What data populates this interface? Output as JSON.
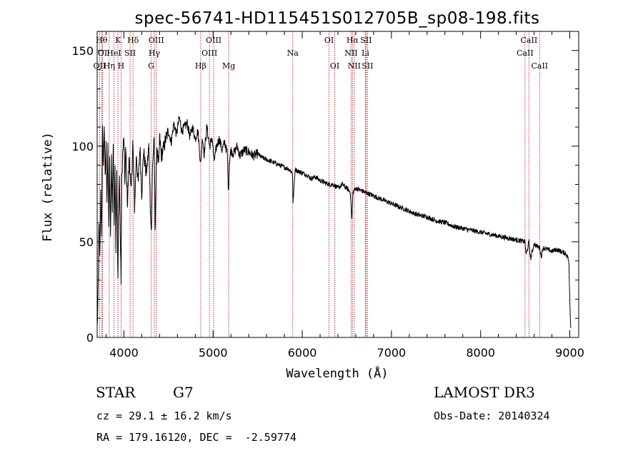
{
  "chart_data": {
    "type": "line",
    "title": "spec-56741-HD115451S012705B_sp08-198.fits",
    "xlabel": "Wavelength (Å)",
    "ylabel": "Flux (relative)",
    "xlim": [
      3700,
      9100
    ],
    "ylim": [
      0,
      160
    ],
    "xticks": [
      4000,
      5000,
      6000,
      7000,
      8000,
      9000
    ],
    "yticks": [
      0,
      50,
      100,
      150
    ],
    "series": [
      {
        "name": "flux",
        "x": [
          3700,
          3710,
          3720,
          3730,
          3740,
          3750,
          3760,
          3770,
          3780,
          3790,
          3800,
          3810,
          3820,
          3830,
          3840,
          3850,
          3860,
          3870,
          3880,
          3890,
          3900,
          3910,
          3920,
          3930,
          3933,
          3940,
          3950,
          3960,
          3968,
          3975,
          3985,
          4000,
          4010,
          4020,
          4040,
          4060,
          4080,
          4100,
          4120,
          4140,
          4160,
          4180,
          4200,
          4220,
          4250,
          4280,
          4300,
          4310,
          4320,
          4340,
          4350,
          4370,
          4390,
          4400,
          4420,
          4440,
          4470,
          4500,
          4530,
          4560,
          4590,
          4620,
          4650,
          4680,
          4710,
          4740,
          4770,
          4800,
          4830,
          4861,
          4880,
          4900,
          4930,
          4960,
          4990,
          5010,
          5040,
          5070,
          5100,
          5130,
          5160,
          5172,
          5183,
          5200,
          5230,
          5270,
          5300,
          5350,
          5400,
          5450,
          5500,
          5550,
          5600,
          5650,
          5700,
          5750,
          5800,
          5850,
          5890,
          5896,
          5920,
          5950,
          6000,
          6050,
          6100,
          6150,
          6200,
          6250,
          6300,
          6350,
          6400,
          6450,
          6500,
          6540,
          6555,
          6563,
          6570,
          6600,
          6650,
          6700,
          6750,
          6800,
          6850,
          6900,
          6950,
          7000,
          7100,
          7200,
          7300,
          7400,
          7500,
          7600,
          7700,
          7800,
          7900,
          8000,
          8100,
          8200,
          8300,
          8400,
          8498,
          8510,
          8542,
          8560,
          8600,
          8620,
          8662,
          8680,
          8700,
          8750,
          8800,
          8850,
          8900,
          8950,
          8980,
          8990,
          9000,
          9010
        ],
        "values": [
          5,
          20,
          62,
          40,
          75,
          55,
          108,
          90,
          112,
          82,
          100,
          72,
          98,
          60,
          92,
          50,
          95,
          66,
          102,
          55,
          92,
          48,
          88,
          40,
          28,
          62,
          85,
          50,
          30,
          80,
          95,
          105,
          80,
          98,
          70,
          95,
          75,
          102,
          68,
          96,
          80,
          100,
          75,
          98,
          85,
          100,
          62,
          55,
          90,
          103,
          58,
          100,
          88,
          105,
          95,
          98,
          104,
          108,
          102,
          112,
          106,
          115,
          108,
          110,
          112,
          105,
          110,
          104,
          108,
          90,
          105,
          96,
          110,
          100,
          104,
          92,
          100,
          104,
          98,
          102,
          96,
          75,
          92,
          98,
          96,
          100,
          95,
          98,
          97,
          95,
          96,
          94,
          93,
          92,
          91,
          90,
          89,
          88,
          86,
          70,
          88,
          87,
          86,
          85,
          83,
          84,
          82,
          81,
          80,
          80,
          78,
          80,
          78,
          76,
          62,
          70,
          76,
          78,
          77,
          76,
          75,
          74,
          73,
          72,
          71,
          70,
          68,
          66,
          64,
          63,
          61,
          60,
          58,
          57,
          56,
          55,
          54,
          53,
          52,
          51,
          50,
          43,
          50,
          41,
          49,
          48,
          47,
          42,
          47,
          46,
          45,
          46,
          45,
          44,
          42,
          38,
          20,
          5
        ]
      }
    ],
    "spectral_lines": [
      {
        "label": "OII",
        "wavelength": 3727,
        "row": 2
      },
      {
        "label": "Hθ",
        "wavelength": 3750,
        "row": 0
      },
      {
        "label": "OI",
        "wavelength": 3760,
        "row": 1
      },
      {
        "label": "Hη",
        "wavelength": 3835,
        "row": 2
      },
      {
        "label": "HeI",
        "wavelength": 3888,
        "row": 1
      },
      {
        "label": "K",
        "wavelength": 3933,
        "row": 0
      },
      {
        "label": "H",
        "wavelength": 3968,
        "row": 2
      },
      {
        "label": "SII",
        "wavelength": 4069,
        "row": 1
      },
      {
        "label": "Hδ",
        "wavelength": 4102,
        "row": 0
      },
      {
        "label": "OIII",
        "wavelength": 4363,
        "row": 0
      },
      {
        "label": "Hγ",
        "wavelength": 4341,
        "row": 1
      },
      {
        "label": "G",
        "wavelength": 4305,
        "row": 2
      },
      {
        "label": "Hβ",
        "wavelength": 4861,
        "row": 2
      },
      {
        "label": "OIII",
        "wavelength": 5007,
        "row": 0
      },
      {
        "label": "OIII",
        "wavelength": 4959,
        "row": 1
      },
      {
        "label": "Mg",
        "wavelength": 5175,
        "row": 2
      },
      {
        "label": "Na",
        "wavelength": 5893,
        "row": 1
      },
      {
        "label": "OI",
        "wavelength": 6300,
        "row": 0
      },
      {
        "label": "OI",
        "wavelength": 6364,
        "row": 2
      },
      {
        "label": "Hα",
        "wavelength": 6563,
        "row": 0
      },
      {
        "label": "NII",
        "wavelength": 6548,
        "row": 1
      },
      {
        "label": "NII",
        "wavelength": 6583,
        "row": 2
      },
      {
        "label": "SII",
        "wavelength": 6716,
        "row": 0
      },
      {
        "label": "Li",
        "wavelength": 6708,
        "row": 1
      },
      {
        "label": "SII",
        "wavelength": 6731,
        "row": 2
      },
      {
        "label": "CaII",
        "wavelength": 8542,
        "row": 0
      },
      {
        "label": "CaII",
        "wavelength": 8498,
        "row": 1
      },
      {
        "label": "CaII",
        "wavelength": 8662,
        "row": 2
      }
    ],
    "line_color": "#b22222"
  },
  "footer": {
    "class_label": "STAR",
    "subclass": "G7",
    "survey": "LAMOST DR3",
    "cz": "cz = 29.1 ± 16.2 km/s",
    "obs_date": "Obs-Date: 20140324",
    "coords": "RA = 179.16120, DEC =  -2.59774"
  }
}
